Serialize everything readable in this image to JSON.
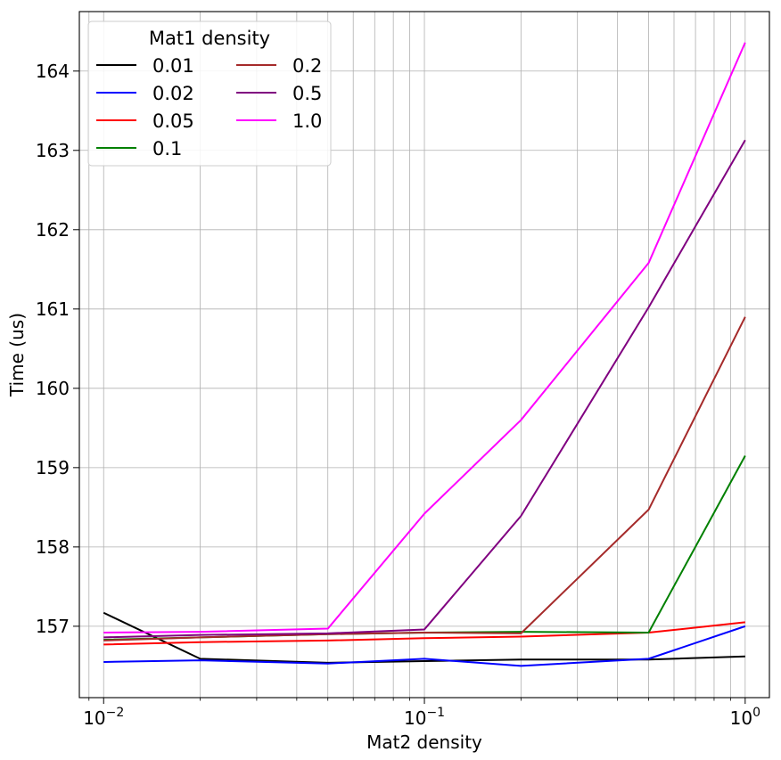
{
  "chart_data": {
    "type": "line",
    "xlabel": "Mat2 density",
    "ylabel": "Time (us)",
    "x_scale": "log",
    "xlim": [
      0.0084,
      1.19
    ],
    "ylim": [
      156.1,
      164.75
    ],
    "grid": true,
    "x_ticks": [
      {
        "value": 0.01,
        "base": "10",
        "exp": "−2"
      },
      {
        "value": 0.1,
        "base": "10",
        "exp": "−1"
      },
      {
        "value": 1.0,
        "base": "10",
        "exp": "0"
      }
    ],
    "y_ticks": [
      157,
      158,
      159,
      160,
      161,
      162,
      163,
      164
    ],
    "legend": {
      "title": "Mat1 density",
      "location": "upper-left",
      "columns": 2
    },
    "x": [
      0.01,
      0.02,
      0.05,
      0.1,
      0.2,
      0.5,
      1.0
    ],
    "series": [
      {
        "name": "0.01",
        "color": "#000000",
        "values": [
          157.17,
          156.59,
          156.54,
          156.56,
          156.58,
          156.58,
          156.62
        ]
      },
      {
        "name": "0.02",
        "color": "#0000ff",
        "values": [
          156.55,
          156.57,
          156.53,
          156.59,
          156.5,
          156.59,
          157.0
        ]
      },
      {
        "name": "0.05",
        "color": "#ff0000",
        "values": [
          156.77,
          156.8,
          156.82,
          156.85,
          156.87,
          156.92,
          157.05
        ]
      },
      {
        "name": "0.1",
        "color": "#008000",
        "values": [
          156.83,
          156.86,
          156.9,
          156.92,
          156.93,
          156.92,
          159.15
        ]
      },
      {
        "name": "0.2",
        "color": "#a52a2a",
        "values": [
          156.82,
          156.86,
          156.9,
          156.92,
          156.91,
          158.47,
          160.9
        ]
      },
      {
        "name": "0.5",
        "color": "#800080",
        "values": [
          156.86,
          156.89,
          156.91,
          156.96,
          158.39,
          161.02,
          163.13
        ]
      },
      {
        "name": "1.0",
        "color": "#ff00ff",
        "values": [
          156.92,
          156.93,
          156.97,
          158.42,
          159.6,
          161.58,
          164.36
        ]
      }
    ]
  }
}
